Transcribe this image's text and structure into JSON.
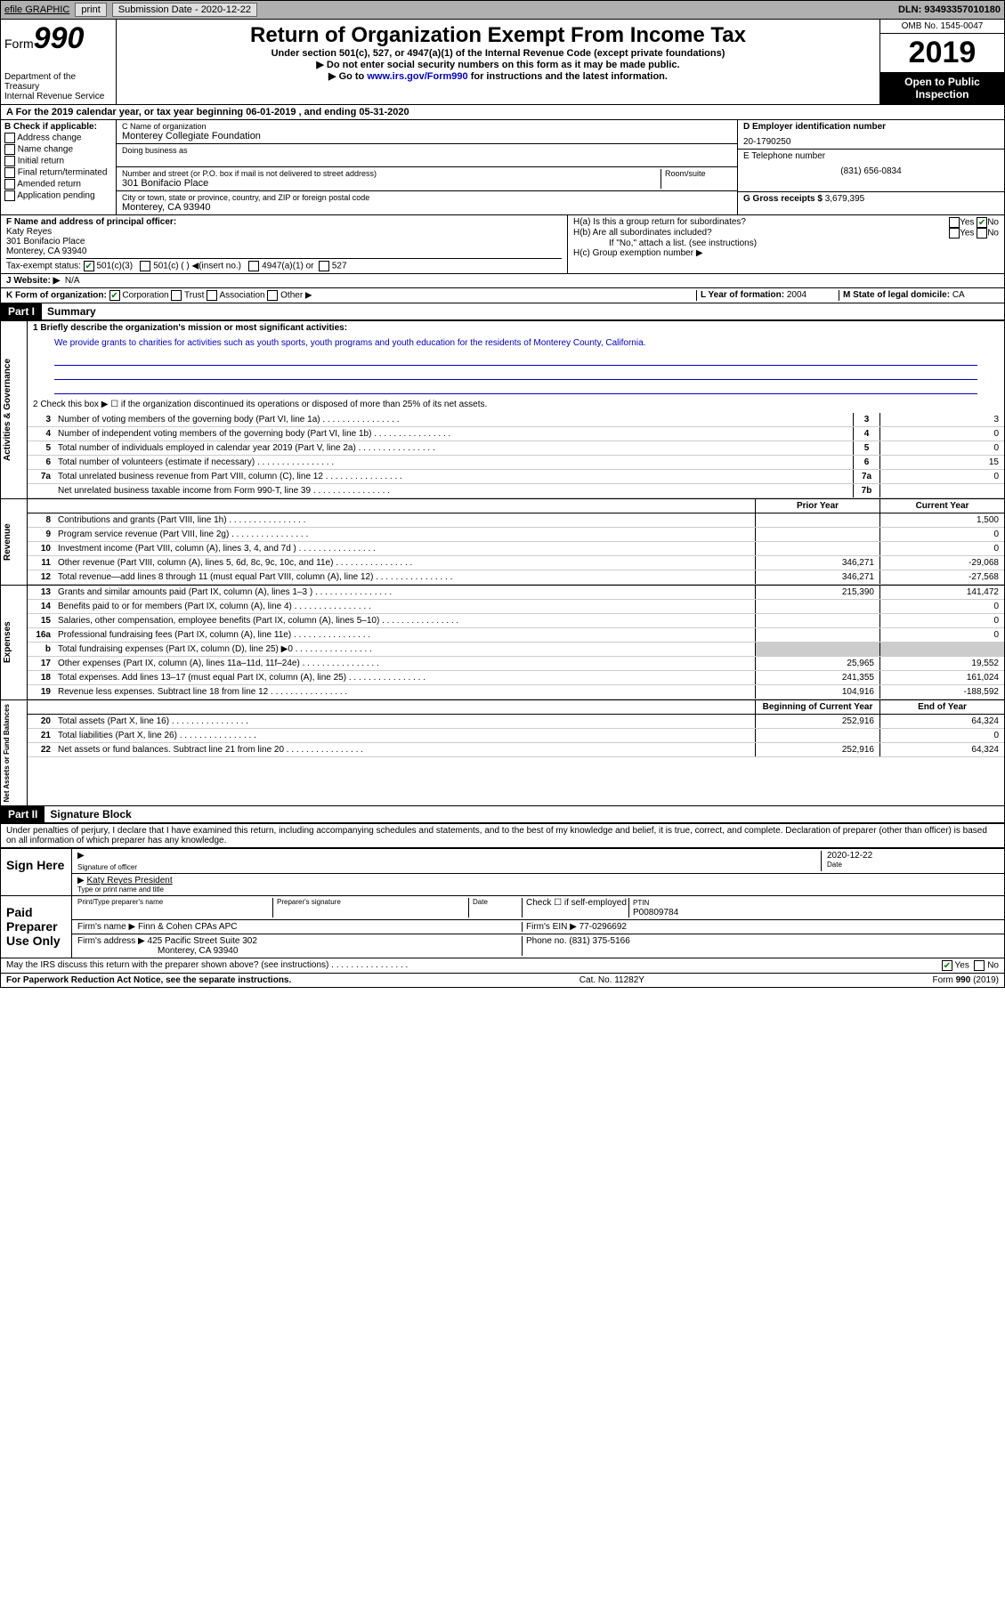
{
  "topbar": {
    "efile": "efile GRAPHIC",
    "print": "print",
    "subdate_label": "Submission Date - 2020-12-22",
    "dln": "DLN: 93493357010180"
  },
  "header": {
    "form_word": "Form",
    "form_num": "990",
    "dept": "Department of the Treasury\nInternal Revenue Service",
    "title": "Return of Organization Exempt From Income Tax",
    "subtitle": "Under section 501(c), 527, or 4947(a)(1) of the Internal Revenue Code (except private foundations)",
    "note1": "Do not enter social security numbers on this form as it may be made public.",
    "note2_pre": "Go to ",
    "note2_link": "www.irs.gov/Form990",
    "note2_post": " for instructions and the latest information.",
    "omb": "OMB No. 1545-0047",
    "year": "2019",
    "open": "Open to Public Inspection"
  },
  "period": "A For the 2019 calendar year, or tax year beginning 06-01-2019    , and ending 05-31-2020",
  "boxB": {
    "label": "B Check if applicable:",
    "items": [
      "Address change",
      "Name change",
      "Initial return",
      "Final return/terminated",
      "Amended return",
      "Application pending"
    ]
  },
  "boxC": {
    "name_label": "C Name of organization",
    "name": "Monterey Collegiate Foundation",
    "dba_label": "Doing business as",
    "addr_label": "Number and street (or P.O. box if mail is not delivered to street address)",
    "room_label": "Room/suite",
    "addr": "301 Bonifacio Place",
    "city_label": "City or town, state or province, country, and ZIP or foreign postal code",
    "city": "Monterey, CA  93940"
  },
  "boxD": {
    "label": "D Employer identification number",
    "value": "20-1790250"
  },
  "boxE": {
    "label": "E Telephone number",
    "value": "(831) 656-0834"
  },
  "boxG": {
    "label": "G Gross receipts $",
    "value": "3,679,395"
  },
  "boxF": {
    "label": "F  Name and address of principal officer:",
    "name": "Katy Reyes",
    "addr1": "301 Bonifacio Place",
    "addr2": "Monterey, CA  93940"
  },
  "boxH": {
    "a": "H(a)  Is this a group return for subordinates?",
    "b": "H(b)  Are all subordinates included?",
    "b_note": "If \"No,\" attach a list. (see instructions)",
    "c": "H(c)  Group exemption number ▶"
  },
  "taxExempt": {
    "label": "Tax-exempt status:",
    "c3": "501(c)(3)",
    "c": "501(c) (  ) ◀(insert no.)",
    "a1": "4947(a)(1) or",
    "527": "527"
  },
  "boxJ": {
    "label": "J   Website: ▶",
    "value": "N/A"
  },
  "boxK": {
    "label": "K Form of organization:",
    "corp": "Corporation",
    "trust": "Trust",
    "assoc": "Association",
    "other": "Other ▶"
  },
  "boxL": {
    "label": "L Year of formation:",
    "value": "2004"
  },
  "boxM": {
    "label": "M State of legal domicile:",
    "value": "CA"
  },
  "part1": {
    "header": "Part I",
    "title": "Summary",
    "q1_label": "1   Briefly describe the organization's mission or most significant activities:",
    "q1_text": "We provide grants to charities for activities such as youth sports, youth programs and youth education for the residents of Monterey County, California.",
    "q2": "2   Check this box ▶ ☐  if the organization discontinued its operations or disposed of more than 25% of its net assets.",
    "governance_lines": [
      {
        "n": "3",
        "d": "Number of voting members of the governing body (Part VI, line 1a)",
        "b": "3",
        "v": "3"
      },
      {
        "n": "4",
        "d": "Number of independent voting members of the governing body (Part VI, line 1b)",
        "b": "4",
        "v": "0"
      },
      {
        "n": "5",
        "d": "Total number of individuals employed in calendar year 2019 (Part V, line 2a)",
        "b": "5",
        "v": "0"
      },
      {
        "n": "6",
        "d": "Total number of volunteers (estimate if necessary)",
        "b": "6",
        "v": "15"
      },
      {
        "n": "7a",
        "d": "Total unrelated business revenue from Part VIII, column (C), line 12",
        "b": "7a",
        "v": "0"
      },
      {
        "n": "",
        "d": "Net unrelated business taxable income from Form 990-T, line 39",
        "b": "7b",
        "v": ""
      }
    ],
    "col_prior": "Prior Year",
    "col_current": "Current Year",
    "revenue_lines": [
      {
        "n": "8",
        "d": "Contributions and grants (Part VIII, line 1h)",
        "p": "",
        "c": "1,500"
      },
      {
        "n": "9",
        "d": "Program service revenue (Part VIII, line 2g)",
        "p": "",
        "c": "0"
      },
      {
        "n": "10",
        "d": "Investment income (Part VIII, column (A), lines 3, 4, and 7d )",
        "p": "",
        "c": "0"
      },
      {
        "n": "11",
        "d": "Other revenue (Part VIII, column (A), lines 5, 6d, 8c, 9c, 10c, and 11e)",
        "p": "346,271",
        "c": "-29,068"
      },
      {
        "n": "12",
        "d": "Total revenue—add lines 8 through 11 (must equal Part VIII, column (A), line 12)",
        "p": "346,271",
        "c": "-27,568"
      }
    ],
    "expense_lines": [
      {
        "n": "13",
        "d": "Grants and similar amounts paid (Part IX, column (A), lines 1–3 )",
        "p": "215,390",
        "c": "141,472"
      },
      {
        "n": "14",
        "d": "Benefits paid to or for members (Part IX, column (A), line 4)",
        "p": "",
        "c": "0"
      },
      {
        "n": "15",
        "d": "Salaries, other compensation, employee benefits (Part IX, column (A), lines 5–10)",
        "p": "",
        "c": "0"
      },
      {
        "n": "16a",
        "d": "Professional fundraising fees (Part IX, column (A), line 11e)",
        "p": "",
        "c": "0"
      },
      {
        "n": "b",
        "d": "Total fundraising expenses (Part IX, column (D), line 25) ▶0",
        "p": "GRAY",
        "c": "GRAY"
      },
      {
        "n": "17",
        "d": "Other expenses (Part IX, column (A), lines 11a–11d, 11f–24e)",
        "p": "25,965",
        "c": "19,552"
      },
      {
        "n": "18",
        "d": "Total expenses. Add lines 13–17 (must equal Part IX, column (A), line 25)",
        "p": "241,355",
        "c": "161,024"
      },
      {
        "n": "19",
        "d": "Revenue less expenses. Subtract line 18 from line 12",
        "p": "104,916",
        "c": "-188,592"
      }
    ],
    "col_begin": "Beginning of Current Year",
    "col_end": "End of Year",
    "netassets_lines": [
      {
        "n": "20",
        "d": "Total assets (Part X, line 16)",
        "p": "252,916",
        "c": "64,324"
      },
      {
        "n": "21",
        "d": "Total liabilities (Part X, line 26)",
        "p": "",
        "c": "0"
      },
      {
        "n": "22",
        "d": "Net assets or fund balances. Subtract line 21 from line 20",
        "p": "252,916",
        "c": "64,324"
      }
    ],
    "vtabs": {
      "gov": "Activities & Governance",
      "rev": "Revenue",
      "exp": "Expenses",
      "net": "Net Assets or Fund Balances"
    }
  },
  "part2": {
    "header": "Part II",
    "title": "Signature Block",
    "declaration": "Under penalties of perjury, I declare that I have examined this return, including accompanying schedules and statements, and to the best of my knowledge and belief, it is true, correct, and complete. Declaration of preparer (other than officer) is based on all information of which preparer has any knowledge.",
    "sign_here": "Sign Here",
    "sig_officer": "Signature of officer",
    "sig_date": "2020-12-22",
    "date_lbl": "Date",
    "officer_name": "Katy Reyes  President",
    "officer_lbl": "Type or print name and title",
    "paid": "Paid Preparer Use Only",
    "prep_name_lbl": "Print/Type preparer's name",
    "prep_sig_lbl": "Preparer's signature",
    "prep_date_lbl": "Date",
    "self_emp": "Check ☐ if self-employed",
    "ptin_lbl": "PTIN",
    "ptin": "P00809784",
    "firm_name_lbl": "Firm's name    ▶",
    "firm_name": "Finn & Cohen CPAs APC",
    "firm_ein_lbl": "Firm's EIN ▶",
    "firm_ein": "77-0296692",
    "firm_addr_lbl": "Firm's address ▶",
    "firm_addr": "425 Pacific Street Suite 302",
    "firm_city": "Monterey, CA  93940",
    "phone_lbl": "Phone no.",
    "phone": "(831) 375-5166",
    "discuss": "May the IRS discuss this return with the preparer shown above? (see instructions)",
    "yes": "Yes",
    "no": "No"
  },
  "footer": {
    "left": "For Paperwork Reduction Act Notice, see the separate instructions.",
    "mid": "Cat. No. 11282Y",
    "right": "Form 990 (2019)"
  }
}
